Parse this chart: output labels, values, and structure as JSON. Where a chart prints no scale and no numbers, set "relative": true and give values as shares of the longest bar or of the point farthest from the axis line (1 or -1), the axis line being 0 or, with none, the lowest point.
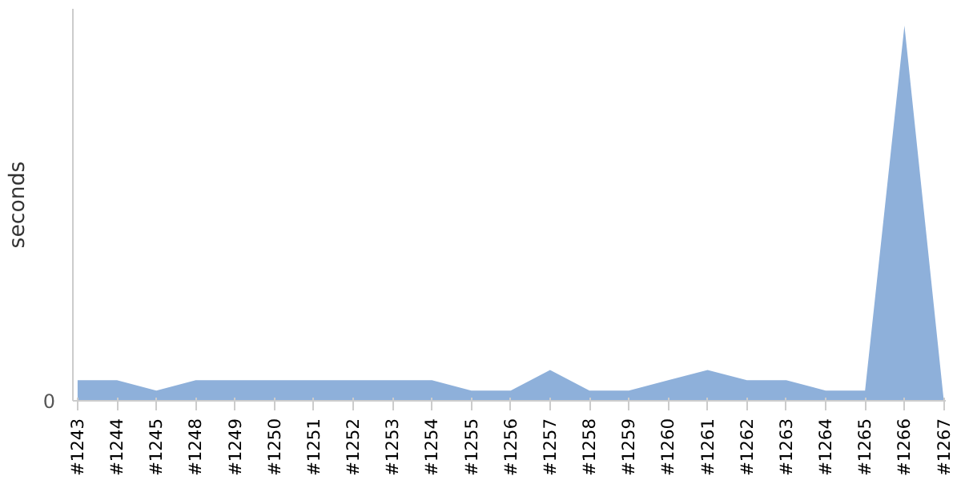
{
  "chart_data": {
    "type": "area",
    "ylabel": "seconds",
    "relative": true,
    "grid": false,
    "annotations": [
      "0"
    ],
    "categories": [
      "#1243",
      "#1244",
      "#1245",
      "#1248",
      "#1249",
      "#1250",
      "#1251",
      "#1252",
      "#1253",
      "#1254",
      "#1255",
      "#1256",
      "#1257",
      "#1258",
      "#1259",
      "#1260",
      "#1261",
      "#1262",
      "#1263",
      "#1264",
      "#1265",
      "#1266",
      "#1267"
    ],
    "series": [
      {
        "color": "#8eb0da",
        "values": [
          0.055,
          0.055,
          0.027,
          0.055,
          0.055,
          0.055,
          0.055,
          0.055,
          0.055,
          0.055,
          0.027,
          0.027,
          0.082,
          0.027,
          0.027,
          0.055,
          0.082,
          0.055,
          0.055,
          0.027,
          0.027,
          1,
          0
        ]
      }
    ]
  }
}
